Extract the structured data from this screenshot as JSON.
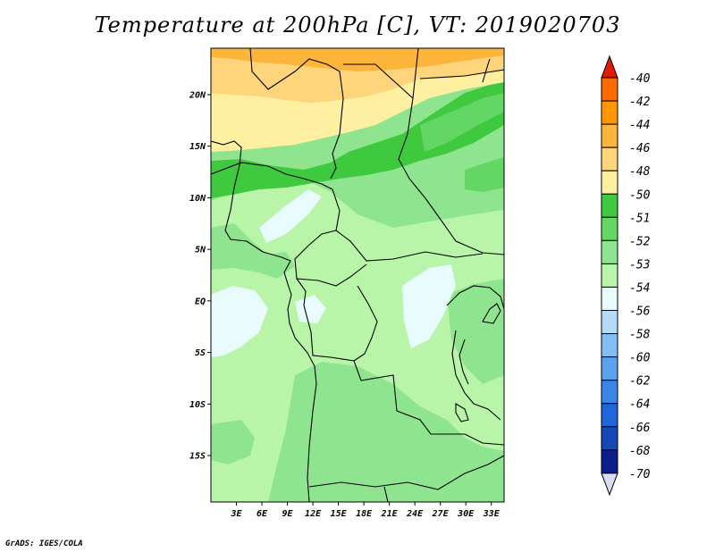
{
  "title": "Temperature at 200hPa [C], VT: 2019020703",
  "credit": "GrADS: IGES/COLA",
  "map": {
    "lat_range": [
      -19.5,
      24.5
    ],
    "lon_range": [
      0,
      34.5
    ],
    "lat_ticks": [
      {
        "value": 20,
        "label": "20N"
      },
      {
        "value": 15,
        "label": "15N"
      },
      {
        "value": 10,
        "label": "10N"
      },
      {
        "value": 5,
        "label": "5N"
      },
      {
        "value": 0,
        "label": "EQ"
      },
      {
        "value": -5,
        "label": "5S"
      },
      {
        "value": -10,
        "label": "10S"
      },
      {
        "value": -15,
        "label": "15S"
      }
    ],
    "lon_ticks": [
      {
        "value": 3,
        "label": "3E"
      },
      {
        "value": 6,
        "label": "6E"
      },
      {
        "value": 9,
        "label": "9E"
      },
      {
        "value": 12,
        "label": "12E"
      },
      {
        "value": 15,
        "label": "15E"
      },
      {
        "value": 18,
        "label": "18E"
      },
      {
        "value": 21,
        "label": "21E"
      },
      {
        "value": 24,
        "label": "24E"
      },
      {
        "value": 27,
        "label": "27E"
      },
      {
        "value": 30,
        "label": "30E"
      },
      {
        "value": 33,
        "label": "33E"
      }
    ]
  },
  "colorbar": {
    "levels": [
      {
        "label": "-40",
        "color": "#ff3c00"
      },
      {
        "label": "-42",
        "color": "#ff6a00"
      },
      {
        "label": "-44",
        "color": "#ff9800"
      },
      {
        "label": "-46",
        "color": "#fdb43a"
      },
      {
        "label": "-48",
        "color": "#fed57a"
      },
      {
        "label": "-50",
        "color": "#fef0a0"
      },
      {
        "label": "-51",
        "color": "#3ec93e"
      },
      {
        "label": "-52",
        "color": "#63d663"
      },
      {
        "label": "-53",
        "color": "#8fe58f"
      },
      {
        "label": "-54",
        "color": "#b8f5a8"
      },
      {
        "label": "-56",
        "color": "#e8fbfd"
      },
      {
        "label": "-58",
        "color": "#b4dcf8"
      },
      {
        "label": "-60",
        "color": "#82bef4"
      },
      {
        "label": "-62",
        "color": "#5aa2ee"
      },
      {
        "label": "-64",
        "color": "#3a86e6"
      },
      {
        "label": "-66",
        "color": "#1f66db"
      },
      {
        "label": "-68",
        "color": "#1648b8"
      },
      {
        "label": "-70",
        "color": "#0a1e8c"
      }
    ],
    "top_color": "#e21a00",
    "bottom_color": "#dcdcf5"
  }
}
